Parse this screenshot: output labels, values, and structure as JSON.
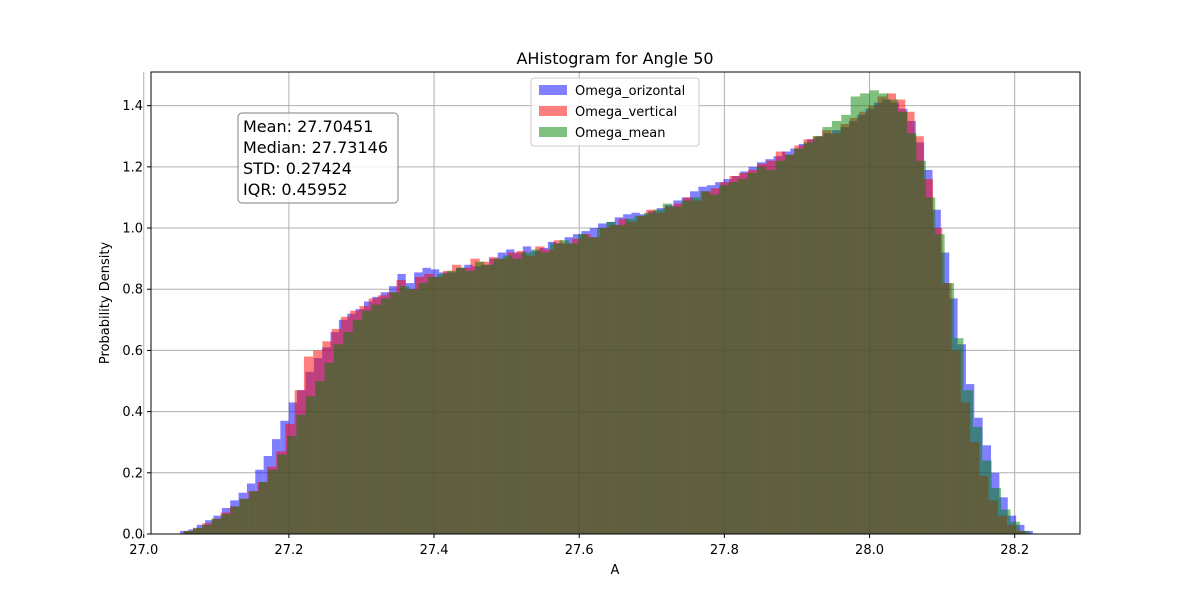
{
  "chart_data": {
    "type": "bar",
    "title": "AHistogram for Angle 50",
    "xlabel": "A",
    "ylabel": "Probability Density",
    "xlim": [
      27.01,
      28.29
    ],
    "ylim": [
      0.0,
      1.51
    ],
    "xticks": [
      "27.0",
      "27.2",
      "27.4",
      "27.6",
      "27.8",
      "28.0",
      "28.2"
    ],
    "yticks": [
      "0.0",
      "0.2",
      "0.4",
      "0.6",
      "0.8",
      "1.0",
      "1.2",
      "1.4"
    ],
    "grid": true,
    "legend_position": "upper-center",
    "stats_box": {
      "mean": "Mean: 27.70451",
      "median": "Median: 27.73146",
      "std": "STD: 0.27424",
      "iqr": "IQR: 0.45952"
    },
    "series": [
      {
        "name": "Omega_orizontal",
        "color": "#0000ff",
        "x_start": 27.05,
        "x_end": 28.225,
        "values": [
          0.01,
          0.015,
          0.03,
          0.045,
          0.06,
          0.085,
          0.11,
          0.135,
          0.165,
          0.21,
          0.255,
          0.31,
          0.37,
          0.43,
          0.47,
          0.53,
          0.575,
          0.61,
          0.66,
          0.7,
          0.72,
          0.735,
          0.76,
          0.775,
          0.79,
          0.81,
          0.85,
          0.82,
          0.855,
          0.87,
          0.865,
          0.855,
          0.855,
          0.87,
          0.88,
          0.875,
          0.88,
          0.9,
          0.92,
          0.93,
          0.92,
          0.94,
          0.925,
          0.935,
          0.955,
          0.95,
          0.97,
          0.98,
          0.99,
          1.0,
          1.015,
          1.02,
          1.035,
          1.045,
          1.05,
          1.045,
          1.055,
          1.065,
          1.075,
          1.09,
          1.1,
          1.12,
          1.135,
          1.14,
          1.15,
          1.16,
          1.17,
          1.185,
          1.2,
          1.215,
          1.225,
          1.235,
          1.25,
          1.26,
          1.275,
          1.29,
          1.3,
          1.31,
          1.32,
          1.33,
          1.35,
          1.37,
          1.39,
          1.41,
          1.42,
          1.41,
          1.39,
          1.35,
          1.28,
          1.19,
          1.06,
          0.92,
          0.77,
          0.62,
          0.49,
          0.38,
          0.29,
          0.2,
          0.12,
          0.06,
          0.03,
          0.01
        ]
      },
      {
        "name": "Omega_vertical",
        "color": "#ff0000",
        "x_start": 27.055,
        "x_end": 28.215,
        "values": [
          0.01,
          0.02,
          0.035,
          0.05,
          0.07,
          0.09,
          0.115,
          0.14,
          0.17,
          0.22,
          0.27,
          0.36,
          0.47,
          0.58,
          0.6,
          0.63,
          0.67,
          0.71,
          0.73,
          0.745,
          0.77,
          0.78,
          0.79,
          0.83,
          0.8,
          0.84,
          0.85,
          0.84,
          0.86,
          0.88,
          0.87,
          0.9,
          0.89,
          0.905,
          0.9,
          0.92,
          0.925,
          0.91,
          0.94,
          0.93,
          0.96,
          0.95,
          0.965,
          0.98,
          0.97,
          1.0,
          1.01,
          1.03,
          1.02,
          1.04,
          1.06,
          1.05,
          1.07,
          1.08,
          1.1,
          1.09,
          1.12,
          1.13,
          1.15,
          1.17,
          1.18,
          1.19,
          1.21,
          1.22,
          1.25,
          1.24,
          1.27,
          1.29,
          1.3,
          1.32,
          1.31,
          1.34,
          1.36,
          1.38,
          1.4,
          1.43,
          1.44,
          1.42,
          1.38,
          1.3,
          1.16,
          1.0,
          0.82,
          0.6,
          0.43,
          0.3,
          0.19,
          0.11,
          0.06,
          0.03,
          0.01
        ]
      },
      {
        "name": "Omega_mean",
        "color": "#008000",
        "x_start": 27.055,
        "x_end": 28.22,
        "values": [
          0.01,
          0.02,
          0.03,
          0.05,
          0.065,
          0.09,
          0.115,
          0.14,
          0.17,
          0.21,
          0.26,
          0.32,
          0.39,
          0.45,
          0.5,
          0.56,
          0.62,
          0.66,
          0.7,
          0.73,
          0.75,
          0.77,
          0.79,
          0.81,
          0.8,
          0.82,
          0.84,
          0.85,
          0.86,
          0.87,
          0.86,
          0.89,
          0.88,
          0.9,
          0.91,
          0.9,
          0.92,
          0.93,
          0.92,
          0.95,
          0.96,
          0.95,
          0.98,
          0.97,
          1.0,
          1.02,
          1.01,
          1.03,
          1.04,
          1.05,
          1.06,
          1.08,
          1.07,
          1.09,
          1.1,
          1.12,
          1.11,
          1.14,
          1.15,
          1.16,
          1.18,
          1.2,
          1.19,
          1.22,
          1.24,
          1.26,
          1.28,
          1.3,
          1.33,
          1.35,
          1.37,
          1.43,
          1.44,
          1.45,
          1.44,
          1.42,
          1.38,
          1.31,
          1.22,
          1.1,
          0.98,
          0.82,
          0.64,
          0.47,
          0.35,
          0.24,
          0.15,
          0.08,
          0.04,
          0.01
        ]
      }
    ]
  }
}
